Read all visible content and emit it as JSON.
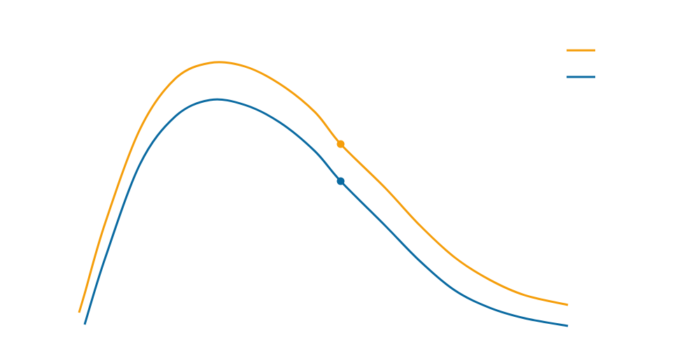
{
  "chart_data": {
    "type": "line",
    "x": [
      0,
      8,
      37,
      87,
      137,
      187,
      237,
      287,
      337,
      374,
      437,
      487,
      537,
      587,
      637,
      699
    ],
    "series": [
      {
        "color": "#f59e0b",
        "values": [
          23,
          50,
          150,
          285,
          357,
          380,
          375,
          350,
          310,
          264,
          202,
          148,
          102,
          70,
          48,
          34
        ]
      },
      {
        "color": "#0a6aa1",
        "values": [
          null,
          6,
          100,
          235,
          303,
          327,
          320,
          295,
          254,
          211,
          148,
          97,
          55,
          30,
          15,
          4
        ]
      }
    ],
    "marker_x": 374,
    "legend": "upper right"
  }
}
